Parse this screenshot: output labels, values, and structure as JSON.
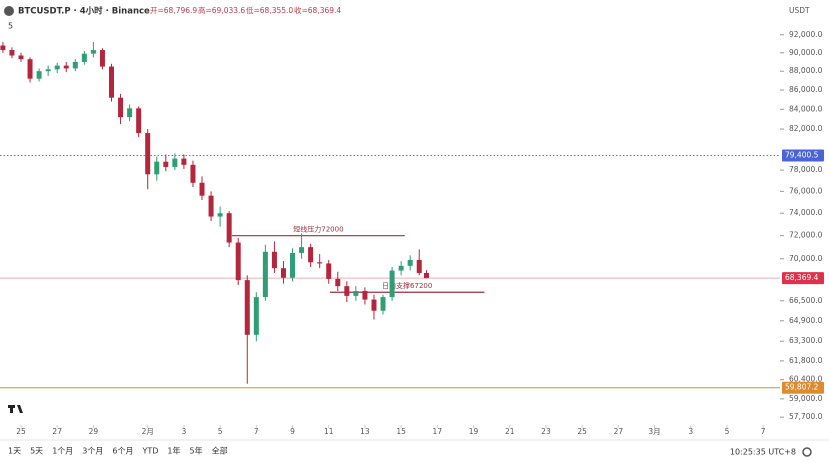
{
  "chart_data": {
    "type": "candlestick",
    "title": "BTCUSDT.P · 4小时 · Binance",
    "ohlc_legend": [
      "开=68,796.9",
      "高=69,033.6",
      "低=68,355.0",
      "收=68,369.4"
    ],
    "indicator_count": "5",
    "y_unit": "USDT",
    "log_scale": true,
    "up_color": "#2e9e75",
    "down_color": "#b3263c",
    "x": [
      24,
      24.5,
      25,
      25.5,
      26,
      26.5,
      27,
      27.5,
      28,
      28.5,
      29,
      29.5,
      30,
      30.5,
      31,
      31.5,
      32,
      32.5,
      33,
      33.5,
      34,
      34.5,
      35,
      35.5,
      36,
      36.5,
      37,
      37.5,
      38,
      38.5,
      39,
      39.5,
      40,
      40.5,
      41,
      41.5,
      42,
      42.5,
      43,
      43.5,
      44,
      44.5,
      45,
      45.5,
      46,
      46.5,
      47,
      47.4
    ],
    "open": [
      90800,
      90300,
      89700,
      89300,
      87200,
      88000,
      88200,
      88600,
      88300,
      89000,
      89900,
      90300,
      88500,
      85200,
      83200,
      84100,
      81600,
      77600,
      78800,
      78300,
      79100,
      78500,
      76800,
      75600,
      73700,
      74000,
      71400,
      68200,
      63800,
      66800,
      70600,
      69200,
      68400,
      70500,
      71000,
      69700,
      69600,
      68300,
      67700,
      66900,
      67300,
      66600,
      65700,
      66800,
      69000,
      69400,
      69900,
      68796.9
    ],
    "high": [
      91200,
      90600,
      90000,
      89500,
      88300,
      88600,
      88900,
      89000,
      89300,
      90200,
      91200,
      90500,
      88800,
      85600,
      84500,
      84300,
      82000,
      79300,
      79500,
      79600,
      79500,
      78900,
      77400,
      76000,
      74600,
      74200,
      71800,
      68600,
      67200,
      71200,
      71500,
      69800,
      70900,
      72200,
      71300,
      70400,
      69900,
      68900,
      68100,
      67700,
      67600,
      67000,
      67000,
      69300,
      69800,
      70300,
      70800,
      69033.6
    ],
    "low": [
      90000,
      89400,
      89000,
      86800,
      86900,
      87500,
      87800,
      87900,
      88000,
      88700,
      89500,
      88200,
      84800,
      82500,
      82800,
      81200,
      76200,
      77000,
      77900,
      78000,
      78100,
      76400,
      75200,
      73300,
      72800,
      71000,
      67800,
      60100,
      63300,
      66500,
      68800,
      67900,
      68100,
      70000,
      69300,
      69200,
      67900,
      67300,
      66400,
      66500,
      66200,
      65000,
      65400,
      66500,
      68600,
      69000,
      68600,
      68355.0
    ],
    "close": [
      90300,
      89700,
      89300,
      87200,
      88000,
      88200,
      88600,
      88300,
      89000,
      89900,
      90300,
      88500,
      85200,
      83200,
      84100,
      81600,
      77600,
      78800,
      78300,
      79100,
      78500,
      76800,
      75600,
      73700,
      74000,
      71400,
      68200,
      63800,
      66800,
      70600,
      69200,
      68400,
      70500,
      71000,
      69700,
      69600,
      68300,
      67700,
      66900,
      67300,
      66600,
      65700,
      66800,
      69000,
      69400,
      69900,
      68796.9,
      68369.4
    ],
    "xlim": [
      23.84,
      66.93
    ],
    "xticks": [
      {
        "value": 25,
        "label": "25"
      },
      {
        "value": 27,
        "label": "27"
      },
      {
        "value": 29,
        "label": "29"
      },
      {
        "value": 32,
        "label": "2月"
      },
      {
        "value": 34,
        "label": "3"
      },
      {
        "value": 36,
        "label": "5"
      },
      {
        "value": 38,
        "label": "7"
      },
      {
        "value": 40,
        "label": "9"
      },
      {
        "value": 42,
        "label": "11"
      },
      {
        "value": 44,
        "label": "13"
      },
      {
        "value": 46,
        "label": "15"
      },
      {
        "value": 48,
        "label": "17"
      },
      {
        "value": 50,
        "label": "19"
      },
      {
        "value": 52,
        "label": "21"
      },
      {
        "value": 54,
        "label": "23"
      },
      {
        "value": 56,
        "label": "25"
      },
      {
        "value": 58,
        "label": "27"
      },
      {
        "value": 60,
        "label": "3月"
      },
      {
        "value": 62,
        "label": "3"
      },
      {
        "value": 64,
        "label": "5"
      },
      {
        "value": 66,
        "label": "7"
      }
    ],
    "ylim": [
      57150,
      93900
    ],
    "yticks": [
      {
        "value": 92000,
        "label": "92,000.0"
      },
      {
        "value": 90000,
        "label": "90,000.0"
      },
      {
        "value": 88000,
        "label": "88,000.0"
      },
      {
        "value": 86000,
        "label": "86,000.0"
      },
      {
        "value": 84000,
        "label": "84,000.0"
      },
      {
        "value": 82000,
        "label": "82,000.0"
      },
      {
        "value": 78000,
        "label": "78,000.0"
      },
      {
        "value": 76000,
        "label": "76,000.0"
      },
      {
        "value": 74000,
        "label": "74,000.0"
      },
      {
        "value": 72000,
        "label": "72,000.0"
      },
      {
        "value": 70000,
        "label": "70,000.0"
      },
      {
        "value": 66500,
        "label": "66,500.0"
      },
      {
        "value": 64900,
        "label": "64,900.0"
      },
      {
        "value": 63300,
        "label": "63,300.0"
      },
      {
        "value": 61800,
        "label": "61,800.0"
      },
      {
        "value": 60400,
        "label": "60,400.0"
      },
      {
        "value": 59000,
        "label": "59,000.0"
      },
      {
        "value": 57700,
        "label": "57,700.0"
      }
    ],
    "price_lines": [
      {
        "value": 79400.5,
        "label": "79,400.5",
        "color": "#4a63d8",
        "style": "dotted"
      },
      {
        "value": 68369.4,
        "label": "68,369.4",
        "color": "#e0314b",
        "style": "solid"
      },
      {
        "value": 59807.2,
        "label": "59,807.2",
        "color": "#e08a2e",
        "style": "solid"
      }
    ],
    "annotations": [
      {
        "text": "短线压力72000",
        "value": 72000,
        "x": [
          36.66,
          46.2
        ],
        "color": "#9b2f3f"
      },
      {
        "text": "日内支撑67200",
        "value": 67200,
        "x": [
          42.07,
          50.6
        ],
        "color": "#9b2f3f"
      }
    ]
  },
  "toolbar": {
    "ranges": [
      "1天",
      "5天",
      "1个月",
      "3个月",
      "6个月",
      "YTD",
      "1年",
      "5年",
      "全部"
    ],
    "time": "10:25:35 UTC+8"
  }
}
